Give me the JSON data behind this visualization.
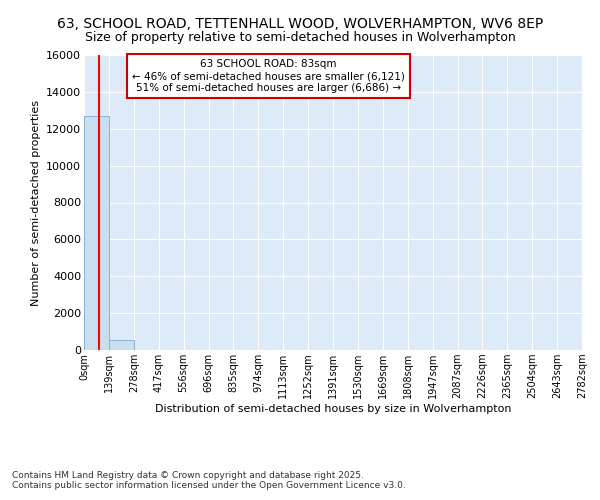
{
  "title_line1": "63, SCHOOL ROAD, TETTENHALL WOOD, WOLVERHAMPTON, WV6 8EP",
  "title_line2": "Size of property relative to semi-detached houses in Wolverhampton",
  "xlabel": "Distribution of semi-detached houses by size in Wolverhampton",
  "ylabel": "Number of semi-detached properties",
  "footer": "Contains HM Land Registry data © Crown copyright and database right 2025.\nContains public sector information licensed under the Open Government Licence v3.0.",
  "bin_edges": [
    0,
    139,
    278,
    417,
    556,
    696,
    835,
    974,
    1113,
    1252,
    1391,
    1530,
    1669,
    1808,
    1947,
    2087,
    2226,
    2365,
    2504,
    2643,
    2782
  ],
  "bin_labels": [
    "0sqm",
    "139sqm",
    "278sqm",
    "417sqm",
    "556sqm",
    "696sqm",
    "835sqm",
    "974sqm",
    "1113sqm",
    "1252sqm",
    "1391sqm",
    "1530sqm",
    "1669sqm",
    "1808sqm",
    "1947sqm",
    "2087sqm",
    "2226sqm",
    "2365sqm",
    "2504sqm",
    "2643sqm",
    "2782sqm"
  ],
  "bar_heights": [
    12700,
    530,
    0,
    0,
    0,
    0,
    0,
    0,
    0,
    0,
    0,
    0,
    0,
    0,
    0,
    0,
    0,
    0,
    0,
    0
  ],
  "bar_color": "#c8dff0",
  "bar_edge_color": "#8ab4d4",
  "red_line_x": 83,
  "annotation_title": "63 SCHOOL ROAD: 83sqm",
  "annotation_line2": "← 46% of semi-detached houses are smaller (6,121)",
  "annotation_line3": "51% of semi-detached houses are larger (6,686) →",
  "annotation_box_color": "#ffffff",
  "annotation_box_edge_color": "#cc0000",
  "ylim": [
    0,
    16000
  ],
  "yticks": [
    0,
    2000,
    4000,
    6000,
    8000,
    10000,
    12000,
    14000,
    16000
  ],
  "background_color": "#ddeaf7",
  "title_fontsize": 10,
  "subtitle_fontsize": 9,
  "footer_fontsize": 6.5
}
